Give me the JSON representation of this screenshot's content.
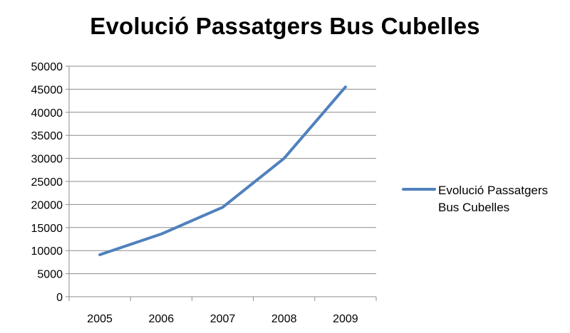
{
  "chart_data": {
    "type": "line",
    "title": "Evolució Passatgers Bus Cubelles",
    "xlabel": "",
    "ylabel": "",
    "categories": [
      "2005",
      "2006",
      "2007",
      "2008",
      "2009"
    ],
    "series": [
      {
        "name": "Evolució Passatgers Bus Cubelles",
        "values": [
          9100,
          13600,
          19400,
          30000,
          45500
        ],
        "color": "#4f81bd"
      }
    ],
    "ylim": [
      0,
      50000
    ],
    "yticks": [
      0,
      5000,
      10000,
      15000,
      20000,
      25000,
      30000,
      35000,
      40000,
      45000,
      50000
    ],
    "grid": true,
    "legend": {
      "position": "right",
      "lines": [
        "Evolució Passatgers",
        "Bus Cubelles"
      ]
    }
  }
}
